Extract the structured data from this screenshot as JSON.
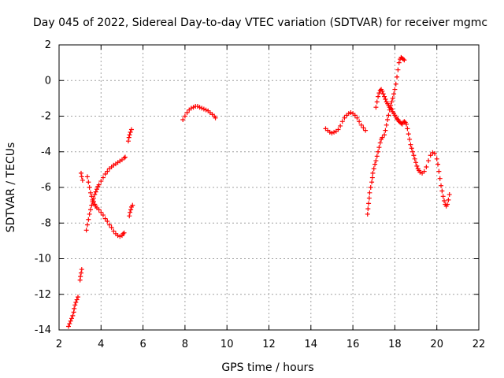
{
  "chart_data": {
    "type": "scatter",
    "title": "Day 045 of 2022, Sidereal Day-to-day VTEC variation (SDTVAR) for receiver mgmc",
    "xlabel": "GPS time / hours",
    "ylabel": "SDTVAR / TECUs",
    "xlim": [
      2,
      22
    ],
    "ylim": [
      -14,
      2
    ],
    "xticks": [
      "2",
      "4",
      "6",
      "8",
      "10",
      "12",
      "14",
      "16",
      "18",
      "20",
      "22"
    ],
    "yticks": [
      "2",
      "0",
      "-2",
      "-4",
      "-6",
      "-8",
      "-10",
      "-12",
      "-14"
    ],
    "grid": true,
    "marker": "+",
    "color": "#ff0000",
    "series": [
      {
        "name": "s1",
        "points": [
          [
            2.45,
            -13.8
          ],
          [
            2.5,
            -13.65
          ],
          [
            2.55,
            -13.5
          ],
          [
            2.6,
            -13.35
          ],
          [
            2.65,
            -13.2
          ],
          [
            2.7,
            -13.0
          ],
          [
            2.72,
            -12.8
          ],
          [
            2.76,
            -12.6
          ],
          [
            2.8,
            -12.45
          ],
          [
            2.85,
            -12.3
          ],
          [
            2.9,
            -12.15
          ]
        ]
      },
      {
        "name": "s2",
        "points": [
          [
            3.0,
            -11.2
          ],
          [
            3.02,
            -11.0
          ],
          [
            3.05,
            -10.8
          ],
          [
            3.08,
            -10.6
          ]
        ]
      },
      {
        "name": "s3",
        "points": [
          [
            3.05,
            -5.2
          ],
          [
            3.08,
            -5.4
          ],
          [
            3.12,
            -5.6
          ]
        ]
      },
      {
        "name": "s4",
        "points": [
          [
            3.35,
            -5.4
          ],
          [
            3.4,
            -5.7
          ],
          [
            3.45,
            -6.0
          ],
          [
            3.5,
            -6.3
          ],
          [
            3.55,
            -6.5
          ],
          [
            3.6,
            -6.7
          ],
          [
            3.65,
            -6.8
          ],
          [
            3.7,
            -6.95
          ],
          [
            3.75,
            -7.05
          ],
          [
            3.8,
            -7.15
          ],
          [
            3.9,
            -7.25
          ],
          [
            4.0,
            -7.4
          ],
          [
            4.1,
            -7.55
          ],
          [
            4.2,
            -7.75
          ],
          [
            4.3,
            -7.9
          ],
          [
            4.4,
            -8.1
          ],
          [
            4.5,
            -8.25
          ],
          [
            4.6,
            -8.45
          ],
          [
            4.7,
            -8.6
          ],
          [
            4.8,
            -8.7
          ],
          [
            4.9,
            -8.75
          ],
          [
            5.0,
            -8.7
          ],
          [
            5.05,
            -8.6
          ],
          [
            5.1,
            -8.55
          ]
        ]
      },
      {
        "name": "s5",
        "points": [
          [
            3.3,
            -8.4
          ],
          [
            3.35,
            -8.1
          ],
          [
            3.4,
            -7.8
          ],
          [
            3.45,
            -7.5
          ],
          [
            3.5,
            -7.25
          ],
          [
            3.55,
            -7.0
          ],
          [
            3.6,
            -6.8
          ],
          [
            3.65,
            -6.6
          ],
          [
            3.7,
            -6.4
          ],
          [
            3.75,
            -6.25
          ],
          [
            3.8,
            -6.1
          ],
          [
            3.85,
            -5.95
          ],
          [
            3.9,
            -5.85
          ],
          [
            4.0,
            -5.65
          ],
          [
            4.1,
            -5.45
          ],
          [
            4.2,
            -5.25
          ],
          [
            4.3,
            -5.1
          ],
          [
            4.4,
            -4.95
          ],
          [
            4.5,
            -4.85
          ],
          [
            4.6,
            -4.75
          ],
          [
            4.7,
            -4.68
          ],
          [
            4.8,
            -4.6
          ],
          [
            4.9,
            -4.52
          ],
          [
            5.0,
            -4.45
          ],
          [
            5.1,
            -4.35
          ],
          [
            5.15,
            -4.3
          ]
        ]
      },
      {
        "name": "s6",
        "points": [
          [
            5.3,
            -3.4
          ],
          [
            5.33,
            -3.2
          ],
          [
            5.36,
            -3.05
          ],
          [
            5.4,
            -2.9
          ],
          [
            5.45,
            -2.75
          ]
        ]
      },
      {
        "name": "s7",
        "points": [
          [
            5.35,
            -7.6
          ],
          [
            5.38,
            -7.4
          ],
          [
            5.42,
            -7.25
          ],
          [
            5.45,
            -7.1
          ],
          [
            5.5,
            -7.0
          ]
        ]
      },
      {
        "name": "s8",
        "points": [
          [
            7.9,
            -2.2
          ],
          [
            8.0,
            -2.0
          ],
          [
            8.1,
            -1.8
          ],
          [
            8.2,
            -1.65
          ],
          [
            8.3,
            -1.55
          ],
          [
            8.4,
            -1.5
          ],
          [
            8.5,
            -1.45
          ],
          [
            8.6,
            -1.45
          ],
          [
            8.7,
            -1.5
          ],
          [
            8.8,
            -1.55
          ],
          [
            8.9,
            -1.6
          ],
          [
            9.0,
            -1.65
          ],
          [
            9.1,
            -1.7
          ],
          [
            9.2,
            -1.8
          ],
          [
            9.3,
            -1.9
          ],
          [
            9.4,
            -2.0
          ],
          [
            9.45,
            -2.1
          ]
        ]
      },
      {
        "name": "s9",
        "points": [
          [
            14.7,
            -2.7
          ],
          [
            14.8,
            -2.8
          ],
          [
            14.9,
            -2.9
          ],
          [
            15.0,
            -2.95
          ],
          [
            15.1,
            -2.9
          ],
          [
            15.2,
            -2.85
          ],
          [
            15.3,
            -2.75
          ],
          [
            15.4,
            -2.55
          ],
          [
            15.5,
            -2.3
          ],
          [
            15.6,
            -2.1
          ],
          [
            15.7,
            -1.95
          ],
          [
            15.8,
            -1.85
          ],
          [
            15.9,
            -1.8
          ],
          [
            16.0,
            -1.85
          ],
          [
            16.1,
            -1.95
          ],
          [
            16.2,
            -2.1
          ],
          [
            16.3,
            -2.3
          ],
          [
            16.4,
            -2.5
          ],
          [
            16.5,
            -2.65
          ],
          [
            16.6,
            -2.8
          ]
        ]
      },
      {
        "name": "s10",
        "points": [
          [
            16.7,
            -7.5
          ],
          [
            16.72,
            -7.2
          ],
          [
            16.75,
            -6.9
          ],
          [
            16.78,
            -6.6
          ],
          [
            16.8,
            -6.3
          ],
          [
            16.85,
            -6.0
          ],
          [
            16.9,
            -5.7
          ],
          [
            16.93,
            -5.45
          ],
          [
            16.95,
            -5.2
          ],
          [
            17.0,
            -4.95
          ],
          [
            17.05,
            -4.7
          ],
          [
            17.1,
            -4.5
          ],
          [
            17.15,
            -4.25
          ],
          [
            17.2,
            -4.0
          ],
          [
            17.25,
            -3.75
          ],
          [
            17.3,
            -3.5
          ],
          [
            17.35,
            -3.3
          ],
          [
            17.4,
            -3.2
          ],
          [
            17.5,
            -3.05
          ],
          [
            17.55,
            -2.8
          ],
          [
            17.6,
            -2.5
          ],
          [
            17.65,
            -2.2
          ],
          [
            17.7,
            -1.95
          ],
          [
            17.75,
            -1.65
          ],
          [
            17.8,
            -1.4
          ],
          [
            17.85,
            -1.2
          ],
          [
            17.9,
            -1.0
          ],
          [
            17.95,
            -0.75
          ],
          [
            18.0,
            -0.5
          ],
          [
            18.05,
            -0.2
          ],
          [
            18.1,
            0.2
          ],
          [
            18.15,
            0.6
          ],
          [
            18.2,
            1.0
          ],
          [
            18.25,
            1.2
          ],
          [
            18.3,
            1.3
          ],
          [
            18.35,
            1.25
          ],
          [
            18.4,
            1.2
          ],
          [
            18.45,
            1.15
          ]
        ]
      },
      {
        "name": "s11",
        "points": [
          [
            17.1,
            -1.5
          ],
          [
            17.15,
            -1.2
          ],
          [
            17.2,
            -0.9
          ],
          [
            17.25,
            -0.7
          ],
          [
            17.3,
            -0.55
          ],
          [
            17.35,
            -0.5
          ],
          [
            17.4,
            -0.6
          ],
          [
            17.45,
            -0.75
          ],
          [
            17.5,
            -0.9
          ],
          [
            17.55,
            -1.05
          ],
          [
            17.6,
            -1.2
          ],
          [
            17.65,
            -1.3
          ],
          [
            17.7,
            -1.4
          ],
          [
            17.75,
            -1.5
          ],
          [
            17.8,
            -1.55
          ],
          [
            17.85,
            -1.6
          ],
          [
            17.9,
            -1.75
          ],
          [
            17.95,
            -1.85
          ],
          [
            18.0,
            -1.95
          ],
          [
            18.05,
            -2.05
          ],
          [
            18.1,
            -2.15
          ],
          [
            18.15,
            -2.2
          ],
          [
            18.2,
            -2.3
          ],
          [
            18.25,
            -2.35
          ],
          [
            18.3,
            -2.4
          ],
          [
            18.35,
            -2.45
          ],
          [
            18.4,
            -2.35
          ],
          [
            18.45,
            -2.3
          ],
          [
            18.5,
            -2.35
          ],
          [
            18.55,
            -2.45
          ],
          [
            18.6,
            -2.7
          ],
          [
            18.65,
            -3.0
          ],
          [
            18.7,
            -3.3
          ],
          [
            18.75,
            -3.6
          ],
          [
            18.8,
            -3.8
          ],
          [
            18.85,
            -4.0
          ],
          [
            18.9,
            -4.2
          ],
          [
            18.95,
            -4.4
          ],
          [
            19.0,
            -4.6
          ],
          [
            19.05,
            -4.8
          ],
          [
            19.1,
            -4.95
          ],
          [
            19.15,
            -5.05
          ],
          [
            19.2,
            -5.15
          ],
          [
            19.3,
            -5.2
          ],
          [
            19.4,
            -5.1
          ],
          [
            19.5,
            -4.85
          ],
          [
            19.6,
            -4.5
          ],
          [
            19.7,
            -4.2
          ],
          [
            19.8,
            -4.05
          ],
          [
            19.9,
            -4.1
          ],
          [
            20.0,
            -4.4
          ],
          [
            20.05,
            -4.7
          ],
          [
            20.1,
            -5.1
          ],
          [
            20.15,
            -5.5
          ],
          [
            20.2,
            -5.9
          ],
          [
            20.25,
            -6.2
          ],
          [
            20.3,
            -6.5
          ],
          [
            20.35,
            -6.75
          ],
          [
            20.4,
            -6.95
          ],
          [
            20.45,
            -7.05
          ],
          [
            20.5,
            -6.95
          ],
          [
            20.55,
            -6.7
          ],
          [
            20.6,
            -6.4
          ]
        ]
      }
    ]
  }
}
